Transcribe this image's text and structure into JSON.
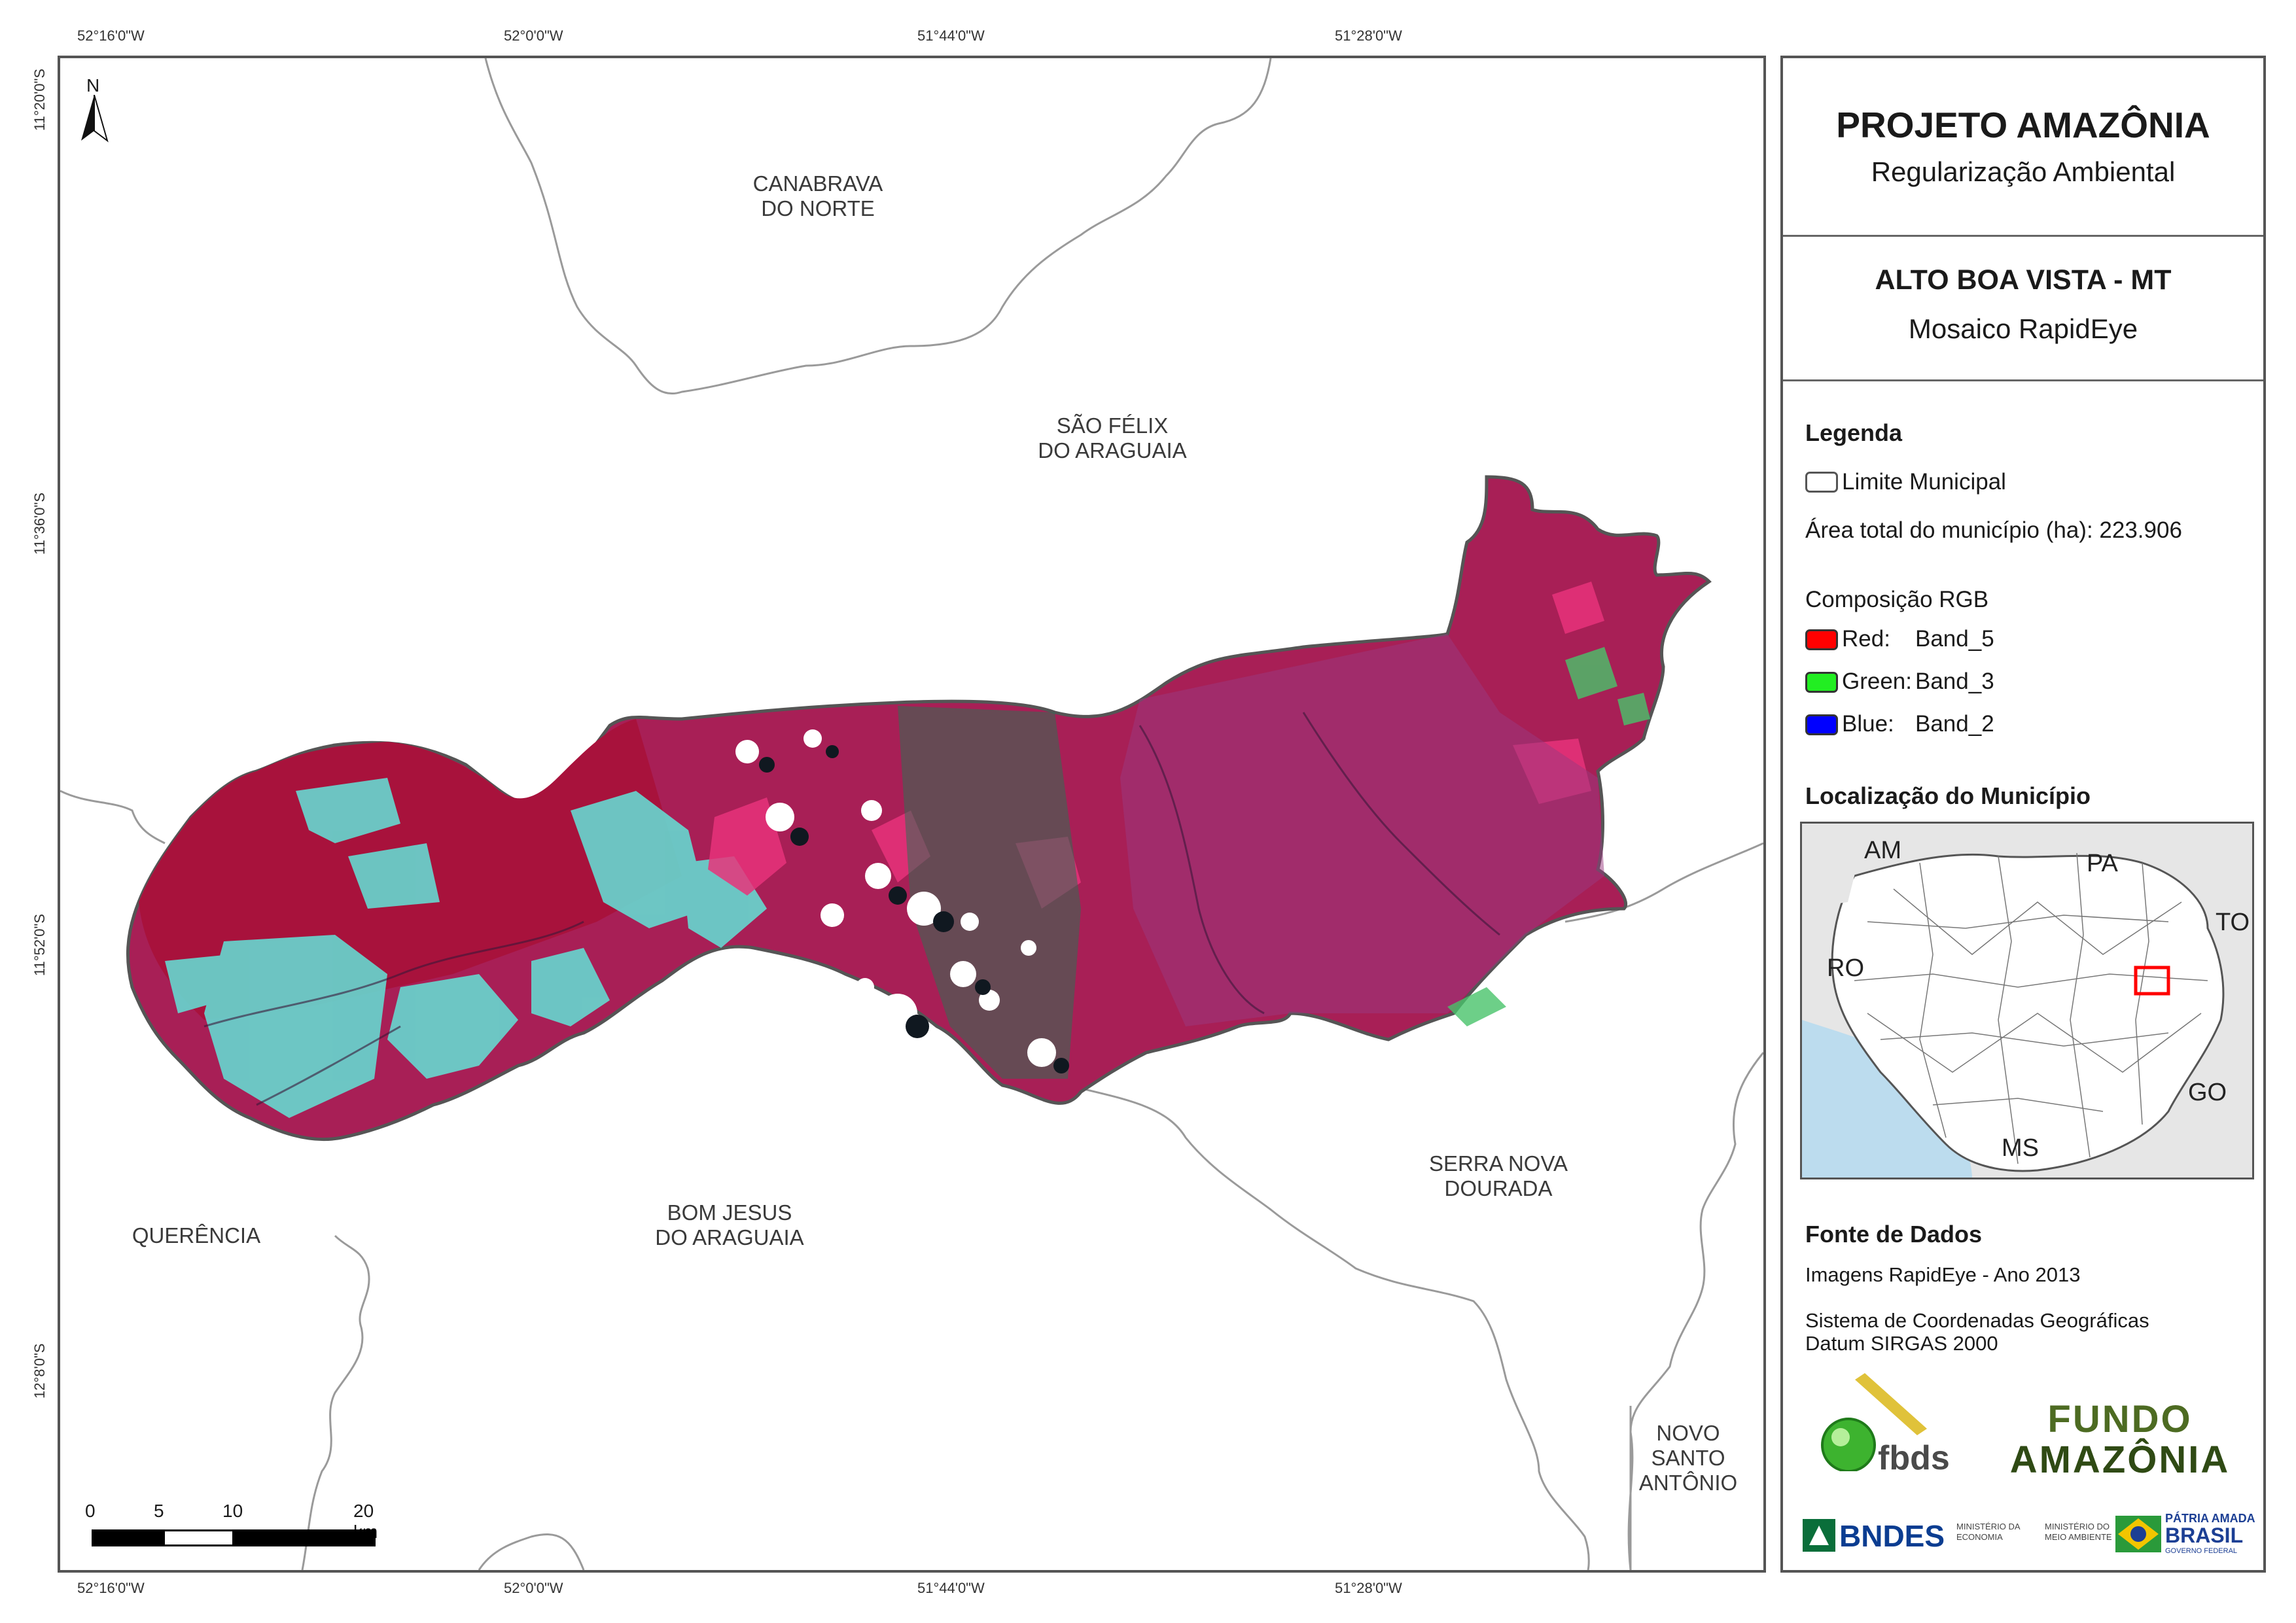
{
  "coords": {
    "top": [
      "52°16'0\"W",
      "52°0'0\"W",
      "51°44'0\"W",
      "51°28'0\"W"
    ],
    "bottom": [
      "52°16'0\"W",
      "52°0'0\"W",
      "51°44'0\"W",
      "51°28'0\"W"
    ],
    "left": [
      "11°20'0\"S",
      "11°36'0\"S",
      "11°52'0\"S",
      "12°8'0\"S"
    ]
  },
  "north": "N",
  "municipalities": {
    "canabrava": [
      "CANABRAVA",
      "DO NORTE"
    ],
    "sao_felix": [
      "SÃO FÉLIX",
      "DO ARAGUAIA"
    ],
    "querencia": [
      "QUERÊNCIA"
    ],
    "bom_jesus": [
      "BOM JESUS",
      "DO ARAGUAIA"
    ],
    "serra_nova": [
      "SERRA NOVA",
      "DOURADA"
    ],
    "novo_santo": [
      "NOVO",
      "SANTO",
      "ANTÔNIO"
    ]
  },
  "scalebar": {
    "labels": [
      "0",
      "5",
      "10",
      "20 km"
    ]
  },
  "panel": {
    "title": "PROJETO AMAZÔNIA",
    "subtitle": "Regularização Ambiental",
    "map_title": "ALTO BOA VISTA - MT",
    "map_subtitle": "Mosaico RapidEye",
    "legend_heading": "Legenda",
    "limit_label": "Limite Municipal",
    "area_label": "Área total do município (ha): 223.906",
    "rgb_heading": "Composição RGB",
    "bands": [
      {
        "channel": "Red:",
        "band": "Band_5",
        "color": "#ff0000"
      },
      {
        "channel": "Green:",
        "band": "Band_3",
        "color": "#22ee22"
      },
      {
        "channel": "Blue:",
        "band": "Band_2",
        "color": "#0000ff"
      }
    ],
    "location_heading": "Localização do Município",
    "location_labels": {
      "am": "AM",
      "pa": "PA",
      "to": "TO",
      "ro": "RO",
      "go": "GO",
      "ms": "MS"
    },
    "source_heading": "Fonte de Dados",
    "source_line": "Imagens RapidEye - Ano 2013",
    "crs_line1": "Sistema de Coordenadas Geográficas",
    "crs_line2": "Datum SIRGAS 2000"
  },
  "logos": {
    "fbds": "fbds",
    "fundo_line1": "FUNDO",
    "fundo_line2": "AMAZÔNIA",
    "bndes": "BNDES",
    "min_econ": "MINISTÉRIO DA ECONOMIA",
    "min_ma": "MINISTÉRIO DO MEIO AMBIENTE",
    "patria_line1": "PÁTRIA AMADA",
    "patria_line2": "BRASIL",
    "patria_line3": "GOVERNO FEDERAL"
  },
  "colors": {
    "municipality_fill": "#b0205a",
    "vegetation_cyan": "#5fd3c8",
    "pink": "#e8337a",
    "water": "#bcdcee",
    "land_gray": "#e6e6e6",
    "highlight": "#ff0000"
  }
}
